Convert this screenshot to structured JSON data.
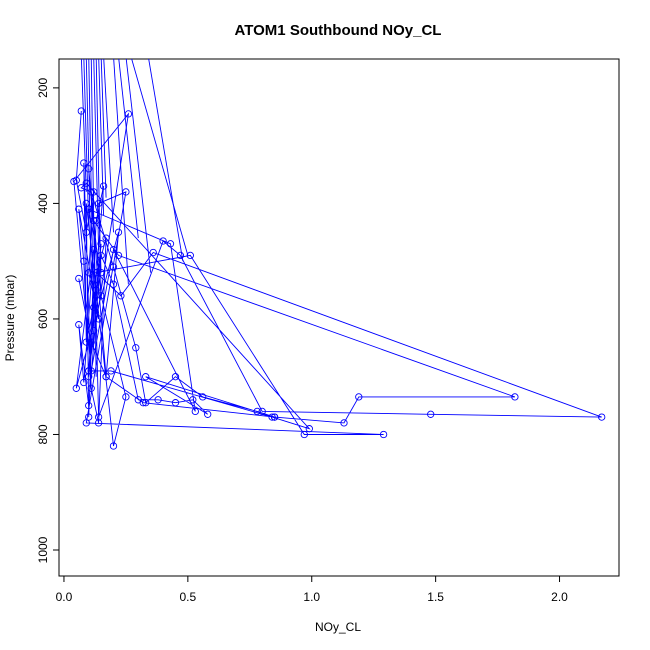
{
  "chart_data": {
    "type": "line",
    "title": "ATOM1 Southbound NOy_CL",
    "xlabel": "NOy_CL",
    "ylabel": "Pressure (mbar)",
    "xlim": [
      -0.02,
      2.24
    ],
    "ylim": [
      1045,
      150
    ],
    "y_reversed": true,
    "x_ticks": [
      "0.0",
      "0.5",
      "1.0",
      "1.5",
      "2.0"
    ],
    "x_tick_values": [
      0.0,
      0.5,
      1.0,
      1.5,
      2.0
    ],
    "y_ticks": [
      "200",
      "400",
      "600",
      "800",
      "1000"
    ],
    "y_tick_values": [
      200,
      400,
      600,
      800,
      1000
    ],
    "grid": false,
    "legend": "none",
    "series": [
      {
        "color": "#0000ff",
        "marker": "open-circle",
        "x": [
          0.07,
          0.05,
          0.09,
          0.12,
          0.1,
          0.14,
          0.06,
          0.08,
          0.1,
          0.13,
          0.15,
          0.12,
          0.1,
          0.13,
          0.16,
          0.12,
          0.09,
          0.08,
          0.11,
          0.14,
          0.17,
          0.12,
          0.1,
          0.09,
          0.2,
          0.25,
          0.15,
          0.1,
          0.17,
          0.22,
          0.05,
          0.12,
          0.08,
          0.06,
          0.1,
          0.15,
          0.2,
          0.3,
          0.38,
          0.45,
          0.52,
          0.58,
          0.33,
          0.85,
          1.13,
          1.19,
          1.82,
          0.22,
          0.12,
          0.14,
          0.4,
          0.47,
          0.8,
          1.48,
          2.17,
          0.36,
          0.23,
          0.13,
          0.51,
          0.97,
          1.29,
          0.09,
          0.25,
          0.14,
          0.15,
          0.1,
          0.43,
          0.53,
          0.2,
          0.11,
          0.04,
          0.26,
          0.1,
          0.19,
          0.84,
          0.99,
          0.09,
          0.07,
          0.11,
          0.2,
          0.29,
          0.33,
          0.45,
          0.56,
          0.78,
          0.85,
          0.32,
          0.17,
          0.11,
          0.06
        ],
        "y": [
          240,
          360,
          450,
          380,
          520,
          600,
          410,
          500,
          690,
          550,
          470,
          620,
          700,
          430,
          370,
          580,
          640,
          330,
          720,
          780,
          460,
          540,
          770,
          400,
          820,
          735,
          560,
          340,
          700,
          450,
          720,
          480,
          710,
          610,
          750,
          490,
          540,
          740,
          740,
          745,
          740,
          765,
          700,
          770,
          780,
          735,
          735,
          490,
          430,
          770,
          465,
          490,
          760,
          765,
          770,
          485,
          560,
          520,
          490,
          800,
          800,
          780,
          380,
          400,
          520,
          410,
          470,
          760,
          480,
          690,
          362,
          245,
          690,
          690,
          770,
          790,
          365,
          373,
          380,
          510,
          650,
          745,
          700,
          735,
          760,
          770,
          745,
          700,
          640,
          530
        ]
      }
    ]
  }
}
